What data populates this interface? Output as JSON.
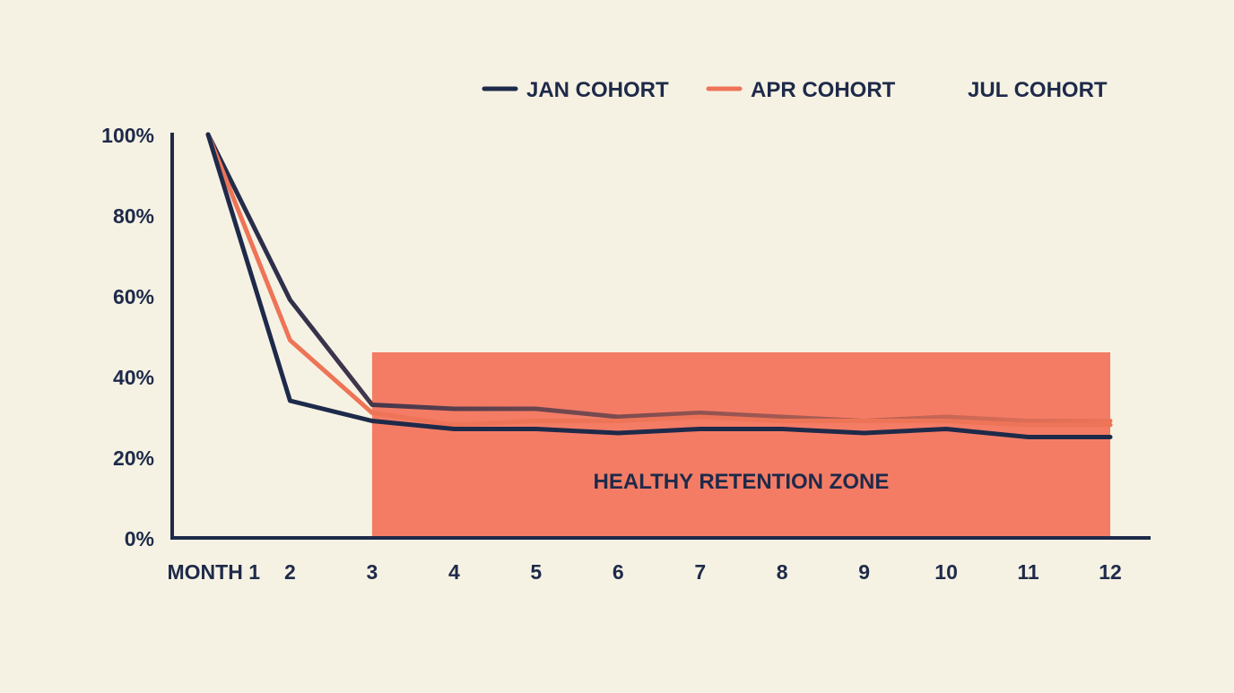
{
  "chart_data": {
    "type": "line",
    "title": "",
    "xlabel": "",
    "ylabel": "",
    "categories": [
      "MONTH 1",
      "2",
      "3",
      "4",
      "5",
      "6",
      "7",
      "8",
      "9",
      "10",
      "11",
      "12"
    ],
    "y_ticks": [
      "0%",
      "20%",
      "40%",
      "60%",
      "80%",
      "100%"
    ],
    "ylim": [
      0,
      100
    ],
    "grid": false,
    "legend_position": "top-right",
    "series": [
      {
        "name": "JAN COHORT",
        "color": "#1e2a4a",
        "values": [
          100,
          34,
          29,
          27,
          27,
          26,
          27,
          27,
          26,
          27,
          25,
          25
        ]
      },
      {
        "name": "APR COHORT",
        "color": "#ee7457",
        "values": [
          100,
          49,
          31,
          28,
          29,
          29,
          30,
          29,
          29,
          29,
          28,
          28
        ]
      },
      {
        "name": "JUL COHORT",
        "color": "#1e2a4a",
        "color_end": "#ee7457",
        "values": [
          100,
          59,
          33,
          32,
          32,
          30,
          31,
          30,
          29,
          30,
          29,
          29
        ]
      }
    ],
    "annotations": [
      {
        "type": "band",
        "label": "HEALTHY RETENTION ZONE",
        "x_from": "3",
        "x_to": "12",
        "y_from": 0,
        "y_to": 46,
        "color": "#f47c65"
      }
    ]
  },
  "colors": {
    "background": "#f6f2e3",
    "axis": "#1e2a4a"
  }
}
